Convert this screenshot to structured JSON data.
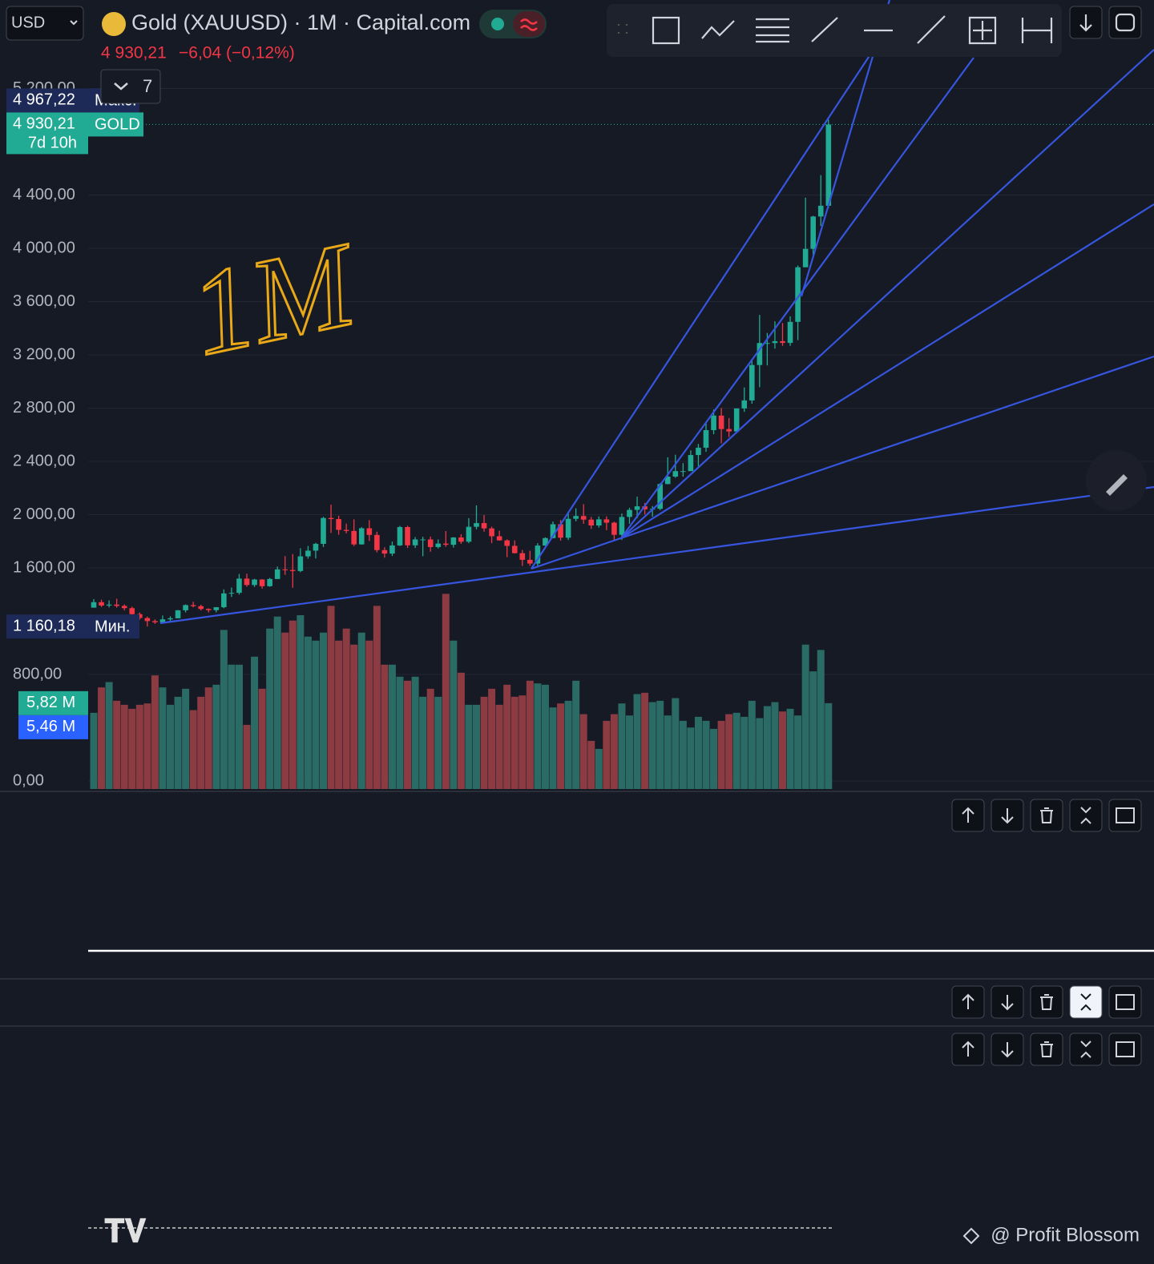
{
  "header": {
    "symbol_currency": "USD",
    "title": "Gold (XAUUSD) · 1M · Capital.com",
    "last_price": "4 930,21",
    "change": "−6,04 (−0,12%)",
    "indicators_count": "7"
  },
  "chart_data": {
    "type": "candlestick",
    "annotation": "1M",
    "open": [
      1302,
      1343,
      1318,
      1325,
      1315,
      1298,
      1253,
      1224,
      1201,
      1192,
      1214,
      1222,
      1282,
      1321,
      1313,
      1292,
      1283,
      1305,
      1409,
      1413,
      1520,
      1472,
      1513,
      1463,
      1517,
      1589,
      1585,
      1577,
      1687,
      1730,
      1781,
      1975,
      1967,
      1886,
      1878,
      1777,
      1898,
      1848,
      1734,
      1708,
      1769,
      1907,
      1770,
      1814,
      1814,
      1757,
      1783,
      1774,
      1829,
      1797,
      1909,
      1937,
      1897,
      1838,
      1807,
      1766,
      1711,
      1661,
      1633,
      1768,
      1824,
      1928,
      1827,
      1969,
      1990,
      1963,
      1919,
      1965,
      1940,
      1849,
      1983,
      2036,
      2063,
      2040,
      2044,
      2230,
      2286,
      2327,
      2327,
      2448,
      2503,
      2635,
      2744,
      2643,
      2625,
      2798,
      2858,
      3124,
      3289,
      3289,
      3303,
      3290,
      3448,
      3858,
      3996,
      4239,
      4320
    ],
    "high": [
      1366,
      1361,
      1356,
      1369,
      1326,
      1309,
      1265,
      1235,
      1214,
      1243,
      1237,
      1284,
      1326,
      1346,
      1324,
      1297,
      1306,
      1439,
      1453,
      1555,
      1557,
      1518,
      1516,
      1525,
      1611,
      1689,
      1704,
      1748,
      1765,
      1789,
      1984,
      2075,
      1992,
      1933,
      1965,
      1906,
      1959,
      1872,
      1755,
      1798,
      1916,
      1917,
      1832,
      1834,
      1836,
      1814,
      1877,
      1831,
      1853,
      1974,
      2070,
      1998,
      1910,
      1880,
      1815,
      1807,
      1735,
      1729,
      1786,
      1830,
      1949,
      1960,
      2009,
      2048,
      2079,
      1983,
      1987,
      1987,
      1947,
      2009,
      2052,
      2135,
      2088,
      2065,
      2236,
      2431,
      2450,
      2387,
      2483,
      2531,
      2685,
      2790,
      2801,
      2726,
      2790,
      2956,
      3167,
      3500,
      3365,
      3452,
      3439,
      3490,
      3871,
      4381,
      4245,
      4550,
      4967
    ],
    "low": [
      1302,
      1307,
      1303,
      1302,
      1282,
      1237,
      1211,
      1160,
      1180,
      1182,
      1196,
      1221,
      1266,
      1304,
      1281,
      1266,
      1266,
      1297,
      1382,
      1400,
      1459,
      1458,
      1445,
      1459,
      1518,
      1548,
      1451,
      1568,
      1670,
      1671,
      1757,
      1863,
      1849,
      1860,
      1764,
      1775,
      1803,
      1717,
      1677,
      1690,
      1765,
      1750,
      1750,
      1688,
      1722,
      1746,
      1759,
      1753,
      1781,
      1786,
      1890,
      1872,
      1787,
      1805,
      1681,
      1709,
      1615,
      1617,
      1616,
      1766,
      1823,
      1805,
      1810,
      1950,
      1932,
      1893,
      1903,
      1884,
      1810,
      1810,
      1931,
      1973,
      2002,
      1984,
      2034,
      2228,
      2277,
      2286,
      2353,
      2364,
      2472,
      2604,
      2536,
      2583,
      2614,
      2772,
      2833,
      2957,
      3121,
      3247,
      3268,
      3268,
      3311,
      3886,
      3931,
      4168,
      4300
    ],
    "close": [
      1343,
      1318,
      1325,
      1315,
      1298,
      1253,
      1224,
      1201,
      1192,
      1214,
      1222,
      1282,
      1321,
      1313,
      1292,
      1283,
      1305,
      1409,
      1413,
      1520,
      1472,
      1513,
      1463,
      1517,
      1589,
      1585,
      1577,
      1687,
      1730,
      1781,
      1975,
      1967,
      1886,
      1878,
      1777,
      1898,
      1848,
      1734,
      1708,
      1769,
      1907,
      1770,
      1814,
      1814,
      1757,
      1783,
      1774,
      1829,
      1797,
      1909,
      1937,
      1897,
      1838,
      1807,
      1766,
      1711,
      1661,
      1633,
      1768,
      1824,
      1928,
      1827,
      1969,
      1990,
      1963,
      1919,
      1965,
      1940,
      1849,
      1983,
      2036,
      2063,
      2040,
      2044,
      2230,
      2286,
      2327,
      2327,
      2448,
      2503,
      2635,
      2744,
      2643,
      2625,
      2798,
      2858,
      3124,
      3289,
      3289,
      3303,
      3290,
      3448,
      3858,
      3996,
      4239,
      4320,
      4930
    ],
    "up_color": "#22ab94",
    "down_color": "#f23645",
    "ylim": [
      -78,
      5865
    ],
    "yticks": [
      {
        "value": 0,
        "label": "0,00"
      },
      {
        "value": 800,
        "label": "800,00"
      },
      {
        "value": 1600,
        "label": "1 600,00"
      },
      {
        "value": 2000,
        "label": "2 000,00"
      },
      {
        "value": 2400,
        "label": "2 400,00"
      },
      {
        "value": 2800,
        "label": "2 800,00"
      },
      {
        "value": 3200,
        "label": "3 200,00"
      },
      {
        "value": 3600,
        "label": "3 600,00"
      },
      {
        "value": 4000,
        "label": "4 000,00"
      },
      {
        "value": 4400,
        "label": "4 400,00"
      },
      {
        "value": 5200,
        "label": "5 200,00"
      }
    ],
    "grid": true,
    "volume": {
      "values": [
        5.1,
        7.0,
        7.4,
        6.0,
        5.7,
        5.4,
        5.7,
        5.8,
        7.9,
        7.0,
        5.7,
        6.3,
        6.9,
        5.3,
        6.3,
        7.0,
        7.2,
        11.3,
        8.7,
        8.7,
        4.2,
        9.3,
        6.9,
        11.4,
        12.3,
        11.1,
        12.0,
        12.4,
        10.8,
        10.5,
        11.1,
        13.1,
        10.5,
        11.4,
        10.2,
        11.1,
        10.5,
        13.1,
        8.7,
        8.7,
        7.8,
        7.5,
        7.8,
        6.3,
        6.9,
        6.3,
        14.0,
        10.5,
        8.1,
        5.7,
        5.7,
        6.3,
        6.9,
        5.7,
        7.2,
        6.3,
        6.4,
        7.5,
        7.3,
        7.2,
        5.5,
        5.8,
        6.0,
        7.5,
        5.0,
        3.0,
        2.4,
        4.5,
        5.0,
        5.8,
        4.9,
        6.5,
        6.6,
        5.9,
        6.0,
        4.9,
        6.2,
        4.5,
        4.0,
        4.8,
        4.5,
        3.9,
        4.5,
        5.0,
        5.1,
        4.8,
        6.0,
        4.7,
        5.6,
        5.9,
        5.2,
        5.4,
        4.9,
        10.2,
        8.2,
        9.8,
        5.82
      ],
      "up_color": "#2b6b66",
      "down_color": "#8b3b41",
      "lim": [
        0,
        14.8
      ]
    },
    "price_labels": [
      {
        "value": 4967.22,
        "label": "4 967,22",
        "tag": "Макс.",
        "color": "#1d2a57",
        "tag_color": "#1d2a57"
      },
      {
        "value": 4930.21,
        "label": "4 930,21",
        "tag": "GOLD",
        "countdown": "7d 10h",
        "color": "#22ab94",
        "tag_color": "#22ab94"
      },
      {
        "value": 1160.18,
        "label": "1 160,18",
        "tag": "Мин.",
        "color": "#1d2a57",
        "tag_color": "#1d2a57"
      }
    ],
    "volume_labels": [
      {
        "value": 5.82,
        "label": "5,82 M",
        "color": "#22ab94"
      },
      {
        "value": 5.46,
        "label": "5,46 M",
        "color": "#2962ff"
      }
    ]
  },
  "watermark": "@ Profit Blossom"
}
